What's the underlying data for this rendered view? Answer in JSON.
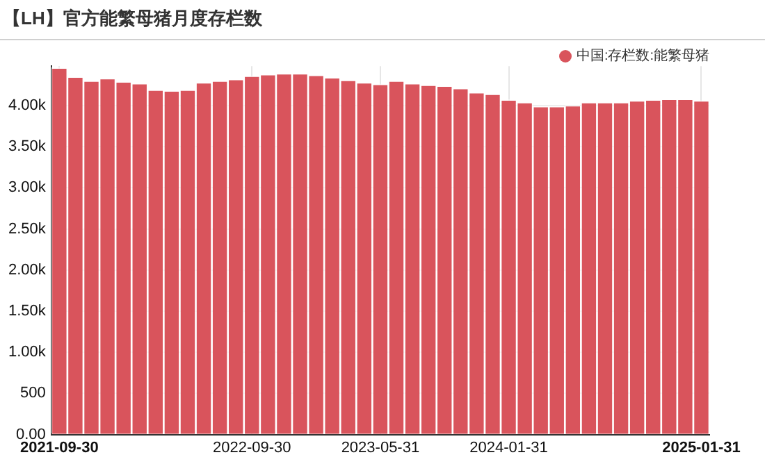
{
  "chart_data": {
    "type": "bar",
    "title": "【LH】官方能繁母猪月度存栏数",
    "categories": [
      "2021-09-30",
      null,
      null,
      null,
      null,
      null,
      null,
      null,
      null,
      null,
      null,
      null,
      "2022-09-30",
      null,
      null,
      null,
      null,
      null,
      null,
      null,
      "2023-05-31",
      null,
      null,
      null,
      null,
      null,
      null,
      null,
      "2024-01-31",
      null,
      null,
      null,
      null,
      null,
      null,
      null,
      null,
      null,
      null,
      null,
      "2025-01-31"
    ],
    "series": [
      {
        "name": "中国:存栏数:能繁母猪",
        "color": "#d9545c",
        "values": [
          4460,
          4350,
          4300,
          4330,
          4290,
          4270,
          4190,
          4180,
          4190,
          4280,
          4300,
          4320,
          4360,
          4380,
          4390,
          4390,
          4370,
          4340,
          4310,
          4280,
          4260,
          4300,
          4270,
          4250,
          4240,
          4210,
          4160,
          4140,
          4070,
          4040,
          3990,
          3990,
          4000,
          4040,
          4040,
          4040,
          4060,
          4070,
          4080,
          4080,
          4060
        ]
      }
    ],
    "ylim": [
      0,
      4480
    ],
    "yticks": [
      {
        "value": 0,
        "label": "0.00"
      },
      500,
      {
        "value": 1000,
        "label": "1.00k"
      },
      {
        "value": 1500,
        "label": "1.50k"
      },
      {
        "value": 2000,
        "label": "2.00k"
      },
      {
        "value": 2500,
        "label": "2.50k"
      },
      {
        "value": 3000,
        "label": "3.00k"
      },
      {
        "value": 3500,
        "label": "3.50k"
      },
      {
        "value": 4000,
        "label": "4.00k"
      }
    ],
    "grid": true,
    "legend": "top right"
  }
}
